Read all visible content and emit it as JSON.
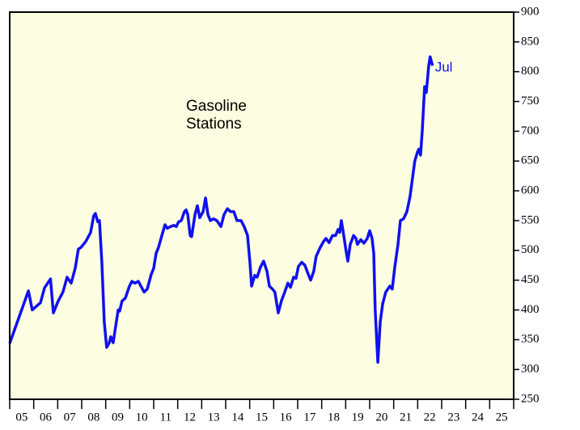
{
  "chart_data": {
    "type": "line",
    "title": "Gasoline\nStations",
    "annotation": "Jul",
    "x": [
      5.0,
      5.78,
      5.94,
      6.28,
      6.45,
      6.7,
      6.82,
      7.02,
      7.22,
      7.39,
      7.56,
      7.73,
      7.86,
      7.97,
      8.17,
      8.37,
      8.5,
      8.57,
      8.67,
      8.74,
      8.84,
      8.94,
      9.04,
      9.15,
      9.21,
      9.31,
      9.52,
      9.58,
      9.68,
      9.82,
      9.99,
      10.09,
      10.22,
      10.36,
      10.6,
      10.73,
      10.9,
      11.0,
      11.1,
      11.2,
      11.34,
      11.47,
      11.57,
      11.7,
      11.84,
      11.94,
      12.04,
      12.15,
      12.28,
      12.35,
      12.42,
      12.52,
      12.58,
      12.72,
      12.82,
      12.92,
      13.06,
      13.16,
      13.26,
      13.36,
      13.49,
      13.63,
      13.8,
      13.93,
      14.07,
      14.2,
      14.34,
      14.47,
      14.64,
      14.77,
      14.91,
      15.01,
      15.08,
      15.21,
      15.31,
      15.45,
      15.58,
      15.72,
      15.82,
      15.95,
      16.05,
      16.19,
      16.32,
      16.46,
      16.59,
      16.7,
      16.83,
      16.93,
      17.03,
      17.17,
      17.3,
      17.44,
      17.54,
      17.67,
      17.77,
      17.94,
      18.08,
      18.18,
      18.31,
      18.45,
      18.58,
      18.68,
      18.75,
      18.82,
      18.92,
      19.02,
      19.09,
      19.19,
      19.33,
      19.43,
      19.49,
      19.63,
      19.76,
      19.9,
      20.0,
      20.1,
      20.17,
      20.23,
      20.34,
      20.44,
      20.54,
      20.67,
      20.84,
      20.94,
      21.04,
      21.18,
      21.28,
      21.41,
      21.55,
      21.68,
      21.78,
      21.88,
      21.99,
      22.05,
      22.12,
      22.19,
      22.29,
      22.36,
      22.46,
      22.52,
      22.62
    ],
    "series": [
      {
        "color": "#1010f0",
        "values": [
          344,
          432,
          400,
          412,
          437,
          452,
          395,
          415,
          430,
          455,
          445,
          470,
          502,
          505,
          515,
          530,
          558,
          562,
          548,
          550,
          480,
          380,
          337,
          345,
          355,
          345,
          400,
          398,
          415,
          420,
          440,
          448,
          445,
          448,
          430,
          435,
          460,
          470,
          495,
          505,
          525,
          543,
          537,
          540,
          542,
          540,
          548,
          550,
          565,
          568,
          560,
          525,
          523,
          560,
          575,
          555,
          565,
          588,
          560,
          550,
          553,
          550,
          540,
          560,
          570,
          565,
          565,
          550,
          550,
          540,
          525,
          480,
          440,
          458,
          455,
          472,
          482,
          465,
          440,
          435,
          430,
          395,
          415,
          430,
          445,
          438,
          455,
          453,
          473,
          480,
          475,
          460,
          450,
          465,
          490,
          505,
          515,
          520,
          513,
          525,
          525,
          535,
          530,
          550,
          525,
          498,
          482,
          510,
          525,
          520,
          510,
          518,
          512,
          520,
          533,
          520,
          495,
          400,
          312,
          380,
          410,
          430,
          440,
          435,
          470,
          510,
          550,
          553,
          565,
          590,
          620,
          650,
          665,
          670,
          660,
          700,
          775,
          765,
          810,
          825,
          810
        ]
      }
    ],
    "xlim": [
      5,
      26
    ],
    "xticks": [
      {
        "value": 5.5,
        "label": "05"
      },
      {
        "value": 6.5,
        "label": "06"
      },
      {
        "value": 7.5,
        "label": "07"
      },
      {
        "value": 8.5,
        "label": "08"
      },
      {
        "value": 9.5,
        "label": "09"
      },
      {
        "value": 10.5,
        "label": "10"
      },
      {
        "value": 11.5,
        "label": "11"
      },
      {
        "value": 12.5,
        "label": "12"
      },
      {
        "value": 13.5,
        "label": "13"
      },
      {
        "value": 14.5,
        "label": "14"
      },
      {
        "value": 15.5,
        "label": "15"
      },
      {
        "value": 16.5,
        "label": "16"
      },
      {
        "value": 17.5,
        "label": "17"
      },
      {
        "value": 18.5,
        "label": "18"
      },
      {
        "value": 19.5,
        "label": "19"
      },
      {
        "value": 20.5,
        "label": "20"
      },
      {
        "value": 21.5,
        "label": "21"
      },
      {
        "value": 22.5,
        "label": "22"
      },
      {
        "value": 23.5,
        "label": "23"
      },
      {
        "value": 24.5,
        "label": "24"
      },
      {
        "value": 25.5,
        "label": "25"
      }
    ],
    "ylim": [
      250,
      900
    ],
    "yticks": [
      250,
      300,
      350,
      400,
      450,
      500,
      550,
      600,
      650,
      700,
      750,
      800,
      850,
      900
    ]
  }
}
